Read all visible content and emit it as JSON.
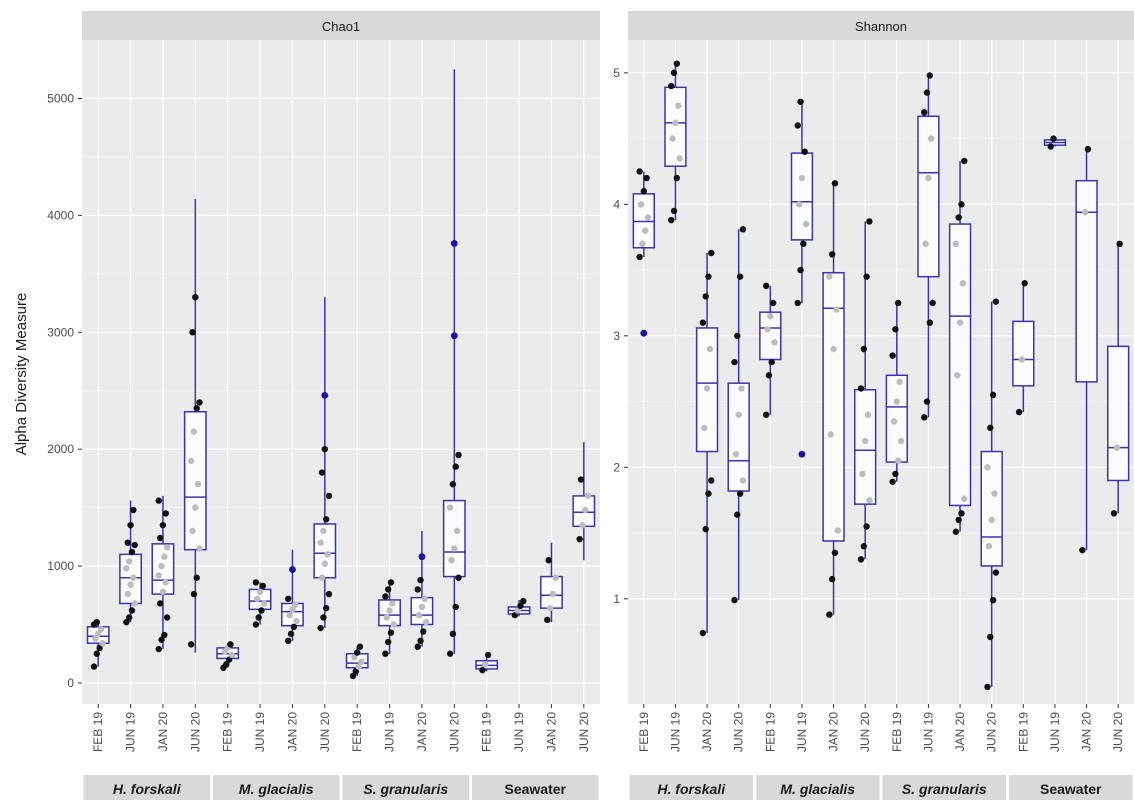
{
  "figure": {
    "ylabel": "Alpha Diversity Measure",
    "colors": {
      "panel_bg": "#ebebeb",
      "strip_bg": "#d9d9d9",
      "grid_major": "#ffffff",
      "box_outline": "#3a34b0",
      "box_fill": "#fbfbfd",
      "point_dark": "#111111",
      "point_grey": "#bdbdbd",
      "outlier": "#1a0fa8",
      "text": "#4d4d4d"
    }
  },
  "chart_data": [
    {
      "type": "boxplot",
      "title": "Chao1",
      "ylabel": "Alpha Diversity Measure",
      "ylim": [
        -180,
        5500
      ],
      "yticks": [
        0,
        1000,
        2000,
        3000,
        4000,
        5000
      ],
      "groups": [
        {
          "name": "H. forskali",
          "categories": [
            "FEB 19",
            "JUN 19",
            "JAN 20",
            "JUN 20"
          ]
        },
        {
          "name": "M. glacialis",
          "categories": [
            "FEB 19",
            "JUN 19",
            "JAN 20",
            "JUN 20"
          ]
        },
        {
          "name": "S. granularis",
          "categories": [
            "FEB 19",
            "JUN 19",
            "JAN 20",
            "JUN 20"
          ]
        },
        {
          "name": "Seawater",
          "categories": [
            "FEB 19",
            "JUN 19",
            "JAN 20",
            "JUN 20"
          ]
        }
      ],
      "boxes": [
        {
          "group": "H. forskali",
          "category": "FEB 19",
          "min": 140,
          "q1": 340,
          "median": 400,
          "q3": 480,
          "max": 520,
          "points": [
            140,
            250,
            300,
            340,
            380,
            420,
            460,
            500,
            520
          ]
        },
        {
          "group": "H. forskali",
          "category": "JUN 19",
          "min": 520,
          "q1": 680,
          "median": 900,
          "q3": 1100,
          "max": 1560,
          "points": [
            520,
            560,
            620,
            680,
            760,
            840,
            900,
            980,
            1040,
            1120,
            1180,
            1200,
            1350,
            1480
          ]
        },
        {
          "group": "H. forskali",
          "category": "JAN 20",
          "min": 290,
          "q1": 760,
          "median": 880,
          "q3": 1190,
          "max": 1600,
          "points": [
            290,
            370,
            410,
            560,
            680,
            780,
            860,
            920,
            1000,
            1080,
            1160,
            1240,
            1350,
            1450,
            1560
          ]
        },
        {
          "group": "H. forskali",
          "category": "JUN 20",
          "min": 260,
          "q1": 1140,
          "median": 1590,
          "q3": 2320,
          "max": 4140,
          "points": [
            330,
            760,
            900,
            1150,
            1300,
            1500,
            1700,
            1900,
            2150,
            2350,
            2400,
            3000,
            3300
          ]
        },
        {
          "group": "M. glacialis",
          "category": "FEB 19",
          "min": 130,
          "q1": 210,
          "median": 250,
          "q3": 300,
          "max": 340,
          "points": [
            130,
            160,
            200,
            240,
            270,
            300,
            330
          ]
        },
        {
          "group": "M. glacialis",
          "category": "JUN 19",
          "min": 500,
          "q1": 630,
          "median": 700,
          "q3": 800,
          "max": 860,
          "points": [
            500,
            560,
            620,
            680,
            720,
            780,
            830,
            860
          ]
        },
        {
          "group": "M. glacialis",
          "category": "JAN 20",
          "min": 360,
          "q1": 490,
          "median": 610,
          "q3": 680,
          "max": 1140,
          "points": [
            360,
            420,
            480,
            530,
            580,
            630,
            670,
            720
          ],
          "outliers": [
            970
          ]
        },
        {
          "group": "M. glacialis",
          "category": "JUN 20",
          "min": 470,
          "q1": 900,
          "median": 1110,
          "q3": 1360,
          "max": 3300,
          "points": [
            470,
            560,
            640,
            760,
            900,
            1020,
            1100,
            1200,
            1300,
            1400,
            1600,
            1800,
            2000
          ],
          "outliers": [
            2460
          ]
        },
        {
          "group": "S. granularis",
          "category": "FEB 19",
          "min": 60,
          "q1": 130,
          "median": 170,
          "q3": 250,
          "max": 310,
          "points": [
            60,
            100,
            140,
            180,
            220,
            260,
            310
          ]
        },
        {
          "group": "S. granularis",
          "category": "JUN 19",
          "min": 250,
          "q1": 490,
          "median": 580,
          "q3": 710,
          "max": 880,
          "points": [
            250,
            350,
            430,
            500,
            560,
            620,
            680,
            740,
            800,
            860
          ]
        },
        {
          "group": "S. granularis",
          "category": "JAN 20",
          "min": 310,
          "q1": 500,
          "median": 580,
          "q3": 730,
          "max": 1300,
          "points": [
            310,
            360,
            440,
            520,
            580,
            650,
            720,
            800,
            880
          ],
          "outliers": [
            1080
          ]
        },
        {
          "group": "S. granularis",
          "category": "JUN 20",
          "min": 250,
          "q1": 910,
          "median": 1120,
          "q3": 1560,
          "max": 5250,
          "points": [
            250,
            420,
            650,
            900,
            1050,
            1150,
            1300,
            1500,
            1700,
            1850,
            1950
          ],
          "outliers": [
            2970,
            3760
          ]
        },
        {
          "group": "Seawater",
          "category": "FEB 19",
          "min": 100,
          "q1": 120,
          "median": 150,
          "q3": 190,
          "max": 240,
          "points": [
            110,
            160,
            240
          ]
        },
        {
          "group": "Seawater",
          "category": "JUN 19",
          "min": 570,
          "q1": 590,
          "median": 620,
          "q3": 650,
          "max": 710,
          "points": [
            580,
            620,
            660,
            700
          ]
        },
        {
          "group": "Seawater",
          "category": "JAN 20",
          "min": 520,
          "q1": 640,
          "median": 750,
          "q3": 910,
          "max": 1200,
          "points": [
            540,
            640,
            760,
            900,
            1050
          ]
        },
        {
          "group": "Seawater",
          "category": "JUN 20",
          "min": 1050,
          "q1": 1340,
          "median": 1460,
          "q3": 1600,
          "max": 2060,
          "points": [
            1230,
            1350,
            1480,
            1600,
            1740
          ]
        }
      ]
    },
    {
      "type": "boxplot",
      "title": "Shannon",
      "ylim": [
        0.2,
        5.25
      ],
      "yticks": [
        1,
        2,
        3,
        4,
        5
      ],
      "groups": [
        {
          "name": "H. forskali",
          "categories": [
            "FEB 19",
            "JUN 19",
            "JAN 20",
            "JUN 20"
          ]
        },
        {
          "name": "M. glacialis",
          "categories": [
            "FEB 19",
            "JUN 19",
            "JAN 20",
            "JUN 20"
          ]
        },
        {
          "name": "S. granularis",
          "categories": [
            "FEB 19",
            "JUN 19",
            "JAN 20",
            "JUN 20"
          ]
        },
        {
          "name": "Seawater",
          "categories": [
            "FEB 19",
            "JUN 19",
            "JAN 20",
            "JUN 20"
          ]
        }
      ],
      "boxes": [
        {
          "group": "H. forskali",
          "category": "FEB 19",
          "min": 3.6,
          "q1": 3.67,
          "median": 3.87,
          "q3": 4.08,
          "max": 4.25,
          "points": [
            3.6,
            3.7,
            3.8,
            3.9,
            4.0,
            4.1,
            4.2,
            4.25
          ],
          "outliers": [
            3.02
          ]
        },
        {
          "group": "H. forskali",
          "category": "JUN 19",
          "min": 3.88,
          "q1": 4.29,
          "median": 4.62,
          "q3": 4.89,
          "max": 5.07,
          "points": [
            3.88,
            3.95,
            4.2,
            4.35,
            4.5,
            4.62,
            4.75,
            4.9,
            5.0,
            5.07
          ]
        },
        {
          "group": "H. forskali",
          "category": "JAN 20",
          "min": 0.74,
          "q1": 2.12,
          "median": 2.64,
          "q3": 3.06,
          "max": 3.63,
          "points": [
            0.74,
            1.53,
            1.8,
            1.9,
            2.3,
            2.6,
            2.9,
            3.1,
            3.3,
            3.45,
            3.63
          ]
        },
        {
          "group": "H. forskali",
          "category": "JUN 20",
          "min": 0.99,
          "q1": 1.82,
          "median": 2.05,
          "q3": 2.64,
          "max": 3.81,
          "points": [
            0.99,
            1.64,
            1.8,
            1.9,
            2.1,
            2.4,
            2.6,
            2.8,
            3.0,
            3.45,
            3.81
          ]
        },
        {
          "group": "M. glacialis",
          "category": "FEB 19",
          "min": 2.4,
          "q1": 2.82,
          "median": 3.06,
          "q3": 3.18,
          "max": 3.38,
          "points": [
            2.4,
            2.7,
            2.8,
            2.95,
            3.05,
            3.15,
            3.25,
            3.38
          ]
        },
        {
          "group": "M. glacialis",
          "category": "JUN 19",
          "min": 3.25,
          "q1": 3.73,
          "median": 4.02,
          "q3": 4.39,
          "max": 4.78,
          "points": [
            3.25,
            3.5,
            3.7,
            3.85,
            4.0,
            4.2,
            4.4,
            4.6,
            4.78
          ],
          "outliers": [
            2.1
          ]
        },
        {
          "group": "M. glacialis",
          "category": "JAN 20",
          "min": 0.88,
          "q1": 1.44,
          "median": 3.21,
          "q3": 3.48,
          "max": 4.16,
          "points": [
            0.88,
            1.15,
            1.35,
            1.52,
            2.25,
            2.9,
            3.2,
            3.45,
            3.62,
            4.16
          ]
        },
        {
          "group": "M. glacialis",
          "category": "JUN 20",
          "min": 1.3,
          "q1": 1.72,
          "median": 2.13,
          "q3": 2.59,
          "max": 3.87,
          "points": [
            1.3,
            1.4,
            1.55,
            1.75,
            1.95,
            2.2,
            2.4,
            2.6,
            2.9,
            3.45,
            3.87
          ]
        },
        {
          "group": "S. granularis",
          "category": "FEB 19",
          "min": 1.89,
          "q1": 2.04,
          "median": 2.46,
          "q3": 2.7,
          "max": 3.25,
          "points": [
            1.89,
            1.95,
            2.05,
            2.2,
            2.35,
            2.5,
            2.65,
            2.85,
            3.05,
            3.25
          ]
        },
        {
          "group": "S. granularis",
          "category": "JUN 19",
          "min": 2.38,
          "q1": 3.45,
          "median": 4.24,
          "q3": 4.67,
          "max": 4.98,
          "points": [
            2.38,
            2.5,
            3.1,
            3.25,
            3.7,
            4.2,
            4.5,
            4.7,
            4.85,
            4.98
          ]
        },
        {
          "group": "S. granularis",
          "category": "JAN 20",
          "min": 1.51,
          "q1": 1.71,
          "median": 3.15,
          "q3": 3.85,
          "max": 4.33,
          "points": [
            1.51,
            1.6,
            1.65,
            1.76,
            2.7,
            3.1,
            3.4,
            3.7,
            3.9,
            4.0,
            4.33
          ]
        },
        {
          "group": "S. granularis",
          "category": "JUN 20",
          "min": 0.33,
          "q1": 1.25,
          "median": 1.47,
          "q3": 2.12,
          "max": 3.26,
          "points": [
            0.33,
            0.71,
            0.99,
            1.2,
            1.4,
            1.6,
            1.8,
            2.0,
            2.3,
            2.55,
            3.26
          ]
        },
        {
          "group": "Seawater",
          "category": "FEB 19",
          "min": 2.42,
          "q1": 2.62,
          "median": 2.82,
          "q3": 3.11,
          "max": 3.4,
          "points": [
            2.42,
            2.82,
            3.4
          ]
        },
        {
          "group": "Seawater",
          "category": "JUN 19",
          "min": 4.44,
          "q1": 4.45,
          "median": 4.47,
          "q3": 4.49,
          "max": 4.5,
          "points": [
            4.44,
            4.5
          ]
        },
        {
          "group": "Seawater",
          "category": "JAN 20",
          "min": 1.37,
          "q1": 2.65,
          "median": 3.94,
          "q3": 4.18,
          "max": 4.42,
          "points": [
            1.37,
            3.94,
            4.42
          ]
        },
        {
          "group": "Seawater",
          "category": "JUN 20",
          "min": 1.65,
          "q1": 1.9,
          "median": 2.15,
          "q3": 2.92,
          "max": 3.7,
          "points": [
            1.65,
            2.15,
            3.7
          ]
        }
      ]
    }
  ]
}
